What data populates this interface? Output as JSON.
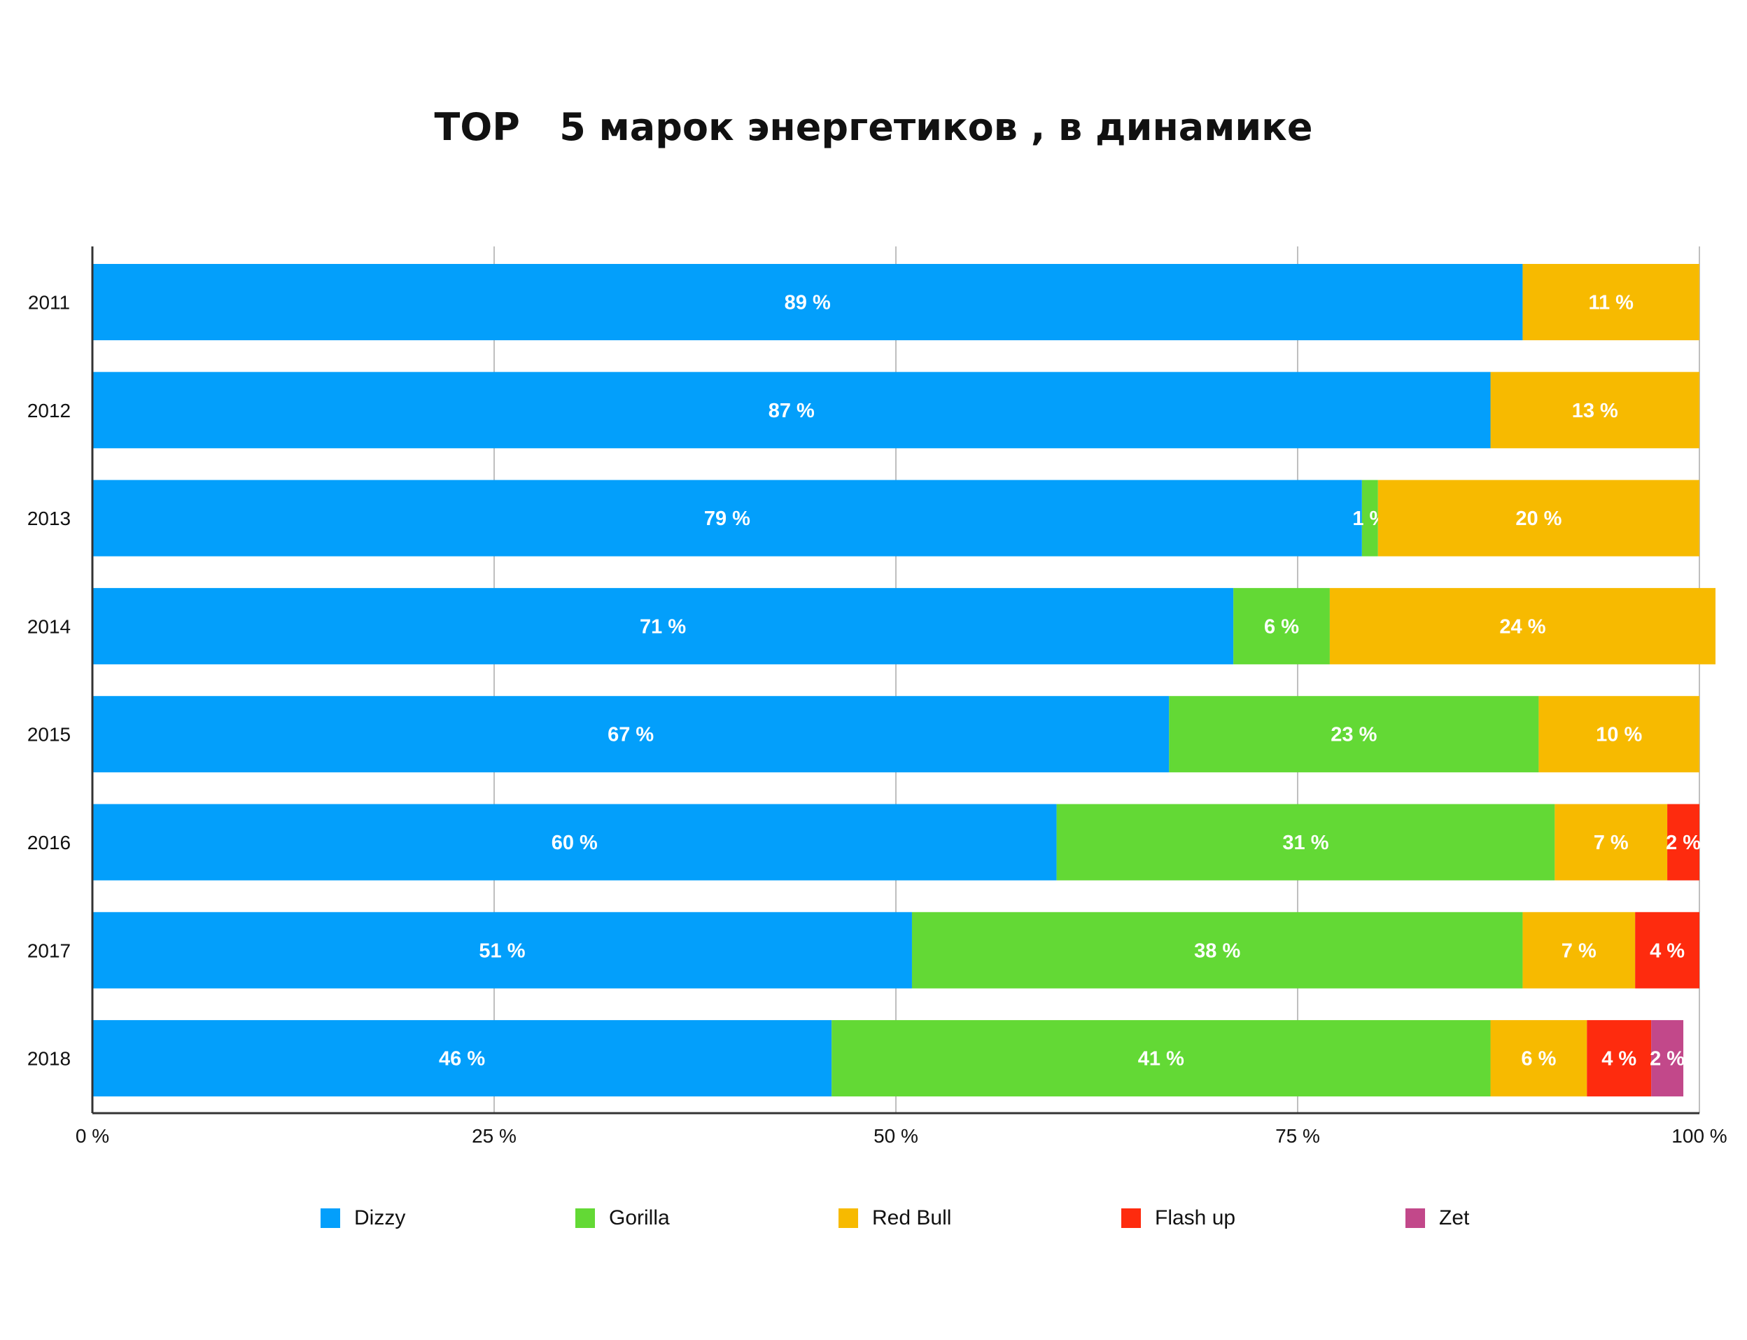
{
  "chart_data": {
    "type": "bar",
    "orientation": "horizontal",
    "stacked": true,
    "title": "TOP   5 марок энергетиков , в динамике",
    "categories": [
      "2011",
      "2012",
      "2013",
      "2014",
      "2015",
      "2016",
      "2017",
      "2018"
    ],
    "series": [
      {
        "name": "Dizzy",
        "color": "#039ffb",
        "values": [
          89,
          87,
          79,
          71,
          67,
          60,
          51,
          46
        ],
        "labels": [
          "89 %",
          "87 %",
          "79 %",
          "71 %",
          "67 %",
          "60 %",
          "51 %",
          "46 %"
        ]
      },
      {
        "name": "Gorilla",
        "color": "#63d935",
        "values": [
          0,
          0,
          1,
          6,
          23,
          31,
          38,
          41
        ],
        "labels": [
          "",
          "",
          "1 %",
          "6 %",
          "23 %",
          "31 %",
          "38 %",
          "41 %"
        ]
      },
      {
        "name": "Red Bull",
        "color": "#f7ba00",
        "values": [
          11,
          13,
          20,
          24,
          10,
          7,
          7,
          6
        ],
        "labels": [
          "11 %",
          "13 %",
          "20 %",
          "24 %",
          "10 %",
          "7 %",
          "7 %",
          "6 %"
        ]
      },
      {
        "name": "Flash up",
        "color": "#fe2b0e",
        "values": [
          0,
          0,
          0,
          0,
          0,
          2,
          4,
          4
        ],
        "labels": [
          "",
          "",
          "",
          "",
          "",
          "2 %",
          "4 %",
          "4 %"
        ]
      },
      {
        "name": "Zet",
        "color": "#c2488a",
        "values": [
          0,
          0,
          0,
          0,
          0,
          0,
          0,
          2
        ],
        "labels": [
          "",
          "",
          "",
          "",
          "",
          "",
          "",
          "2 %"
        ]
      }
    ],
    "xlim": [
      0,
      100
    ],
    "xticks": [
      0,
      25,
      50,
      75,
      100
    ],
    "xtick_labels": [
      "0 %",
      "25 %",
      "50 %",
      "75 %",
      "100 %"
    ],
    "grid": true,
    "legend_position": "bottom"
  }
}
